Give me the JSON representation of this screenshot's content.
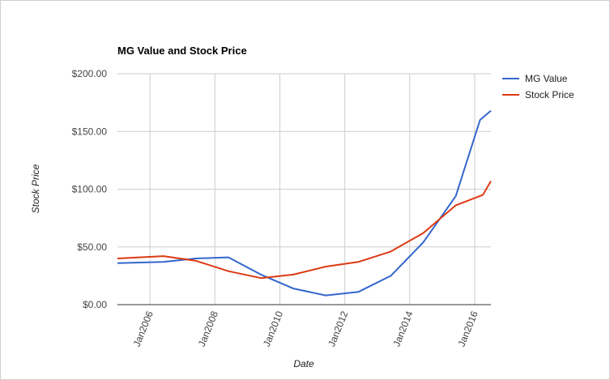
{
  "chart_data": {
    "type": "line",
    "title": "MG Value and Stock Price",
    "xlabel": "Date",
    "ylabel": "Stock Price",
    "x_ticks": [
      "Jan2006",
      "Jan2008",
      "Jan2010",
      "Jan2012",
      "Jan2014",
      "Jan2016"
    ],
    "y_ticks": [
      "$0.00",
      "$50.00",
      "$100.00",
      "$150.00",
      "$200.00"
    ],
    "ylim": [
      0,
      200
    ],
    "xlim": [
      "2005-01",
      "2016-07"
    ],
    "grid": true,
    "legend_position": "right",
    "series": [
      {
        "name": "MG Value",
        "color": "#3366cc",
        "points": [
          {
            "x": "2005-01",
            "y": 36
          },
          {
            "x": "2006-06",
            "y": 37
          },
          {
            "x": "2007-06",
            "y": 40
          },
          {
            "x": "2008-06",
            "y": 41
          },
          {
            "x": "2009-06",
            "y": 26
          },
          {
            "x": "2010-06",
            "y": 14
          },
          {
            "x": "2011-06",
            "y": 8
          },
          {
            "x": "2012-06",
            "y": 11
          },
          {
            "x": "2013-06",
            "y": 25
          },
          {
            "x": "2014-06",
            "y": 54
          },
          {
            "x": "2015-06",
            "y": 94
          },
          {
            "x": "2016-03",
            "y": 160
          },
          {
            "x": "2016-07",
            "y": 168
          }
        ]
      },
      {
        "name": "Stock Price",
        "color": "#dc3912",
        "points": [
          {
            "x": "2005-01",
            "y": 40
          },
          {
            "x": "2006-06",
            "y": 42
          },
          {
            "x": "2007-06",
            "y": 38
          },
          {
            "x": "2008-06",
            "y": 29
          },
          {
            "x": "2009-06",
            "y": 23
          },
          {
            "x": "2010-06",
            "y": 26
          },
          {
            "x": "2011-06",
            "y": 33
          },
          {
            "x": "2012-06",
            "y": 37
          },
          {
            "x": "2013-06",
            "y": 46
          },
          {
            "x": "2014-06",
            "y": 62
          },
          {
            "x": "2015-06",
            "y": 86
          },
          {
            "x": "2016-04",
            "y": 95
          },
          {
            "x": "2016-07",
            "y": 107
          }
        ]
      }
    ]
  },
  "colors": {
    "grid": "#cccccc",
    "axis": "#333333"
  }
}
